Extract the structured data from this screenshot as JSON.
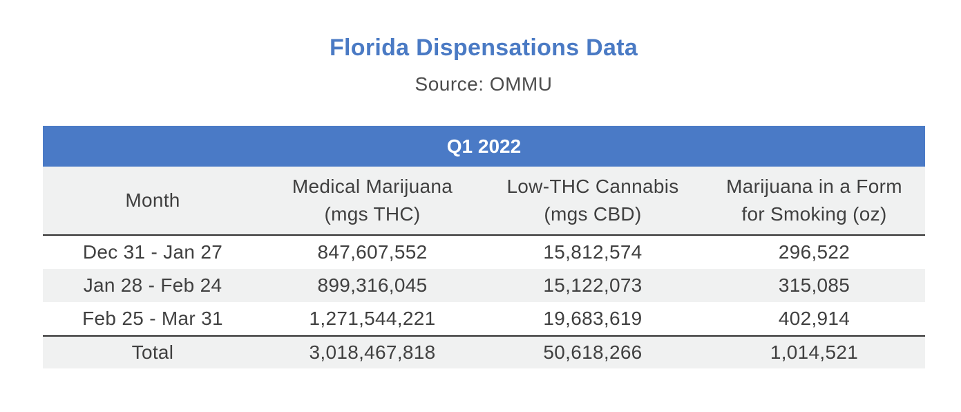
{
  "title": "Florida Dispensations Data",
  "subtitle": "Source: OMMU",
  "colors": {
    "title": "#4a7ac4",
    "band_background": "#4a7ac6",
    "band_text": "#ffffff",
    "row_shade": "#f0f1f1",
    "rule": "#303030"
  },
  "chart_data": {
    "type": "table",
    "title": "Florida Dispensations Data",
    "subtitle": "Source: OMMU",
    "group_header": "Q1 2022",
    "columns": [
      {
        "line1": "Month",
        "line2": ""
      },
      {
        "line1": "Medical Marijuana",
        "line2": "(mgs THC)"
      },
      {
        "line1": "Low-THC Cannabis",
        "line2": "(mgs CBD)"
      },
      {
        "line1": "Marijuana in a Form",
        "line2": "for Smoking (oz)"
      }
    ],
    "rows": [
      [
        "Dec 31 - Jan 27",
        "847,607,552",
        "15,812,574",
        "296,522"
      ],
      [
        "Jan 28 - Feb 24",
        "899,316,045",
        "15,122,073",
        "315,085"
      ],
      [
        "Feb 25 - Mar 31",
        "1,271,544,221",
        "19,683,619",
        "402,914"
      ]
    ],
    "total": [
      "Total",
      "3,018,467,818",
      "50,618,266",
      "1,014,521"
    ]
  }
}
